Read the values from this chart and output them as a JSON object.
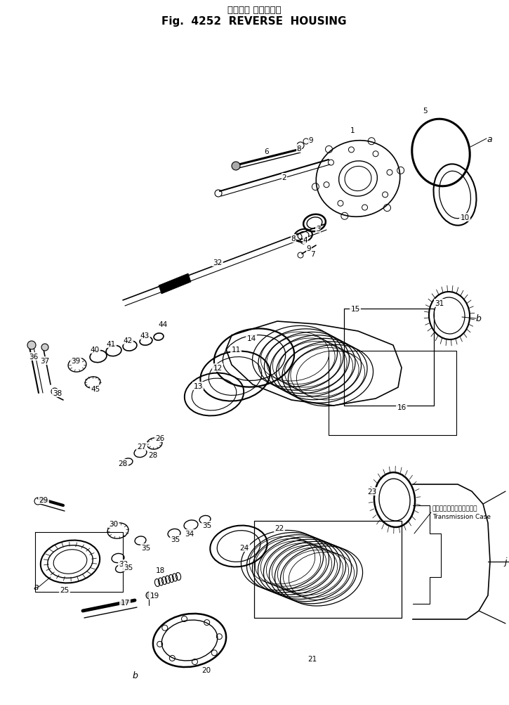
{
  "title_jp": "後　　進 ハウジング",
  "title_en": "Fig.  4252  REVERSE  HOUSING",
  "bg_color": "#ffffff",
  "lc": "#000000",
  "transmission_jp": "トランスミッションケース",
  "transmission_en": "Transmission Case"
}
